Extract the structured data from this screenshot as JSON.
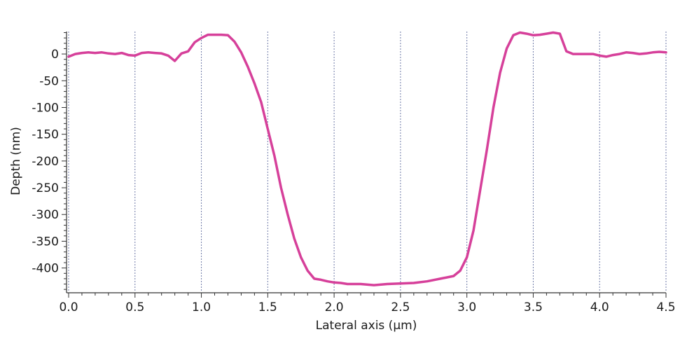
{
  "chart_data": {
    "type": "line",
    "title": "",
    "xlabel": "Lateral axis (µm)",
    "ylabel": "Depth (nm)",
    "xlim": [
      0,
      4.5
    ],
    "ylim": [
      -445,
      42
    ],
    "x_ticks": [
      0.0,
      0.5,
      1.0,
      1.5,
      2.0,
      2.5,
      3.0,
      3.5,
      4.0,
      4.5
    ],
    "x_tick_labels": [
      "0.0",
      "0.5",
      "1.0",
      "1.5",
      "2.0",
      "2.5",
      "3.0",
      "3.5",
      "4.0",
      "4.5"
    ],
    "y_ticks": [
      0,
      -50,
      -100,
      -150,
      -200,
      -250,
      -300,
      -350,
      -400
    ],
    "y_tick_labels": [
      "0",
      "-50",
      "-100",
      "-150",
      "-200",
      "-250",
      "-300",
      "-350",
      "-400"
    ],
    "grid": "vertical dashed",
    "line_color": "#d6409a",
    "grid_color": "#6f7aa8",
    "series": [
      {
        "x": [
          0.0,
          0.05,
          0.1,
          0.15,
          0.2,
          0.25,
          0.3,
          0.35,
          0.4,
          0.45,
          0.5,
          0.55,
          0.6,
          0.65,
          0.7,
          0.75,
          0.8,
          0.85,
          0.9,
          0.95,
          1.0,
          1.05,
          1.1,
          1.15,
          1.2,
          1.25,
          1.3,
          1.35,
          1.4,
          1.45,
          1.5,
          1.55,
          1.6,
          1.65,
          1.7,
          1.75,
          1.8,
          1.85,
          1.9,
          1.95,
          2.0,
          2.05,
          2.1,
          2.2,
          2.3,
          2.4,
          2.5,
          2.6,
          2.7,
          2.8,
          2.9,
          2.95,
          3.0,
          3.05,
          3.1,
          3.15,
          3.2,
          3.25,
          3.3,
          3.35,
          3.4,
          3.45,
          3.5,
          3.55,
          3.6,
          3.65,
          3.7,
          3.75,
          3.8,
          3.85,
          3.9,
          3.95,
          4.0,
          4.05,
          4.1,
          4.15,
          4.2,
          4.25,
          4.3,
          4.35,
          4.4,
          4.45,
          4.5
        ],
        "y": [
          -5,
          0,
          2,
          3,
          2,
          3,
          1,
          0,
          2,
          -2,
          -3,
          2,
          3,
          2,
          1,
          -3,
          -13,
          1,
          5,
          22,
          30,
          36,
          36,
          36,
          35,
          23,
          3,
          -24,
          -55,
          -90,
          -140,
          -190,
          -250,
          -300,
          -345,
          -380,
          -405,
          -420,
          -422,
          -425,
          -427,
          -428,
          -430,
          -430,
          -432,
          -430,
          -429,
          -428,
          -425,
          -420,
          -415,
          -405,
          -380,
          -330,
          -255,
          -180,
          -100,
          -35,
          10,
          35,
          40,
          38,
          35,
          36,
          38,
          40,
          38,
          5,
          0,
          0,
          0,
          0,
          -3,
          -5,
          -2,
          0,
          3,
          2,
          0,
          1,
          3,
          4,
          3
        ]
      }
    ]
  }
}
